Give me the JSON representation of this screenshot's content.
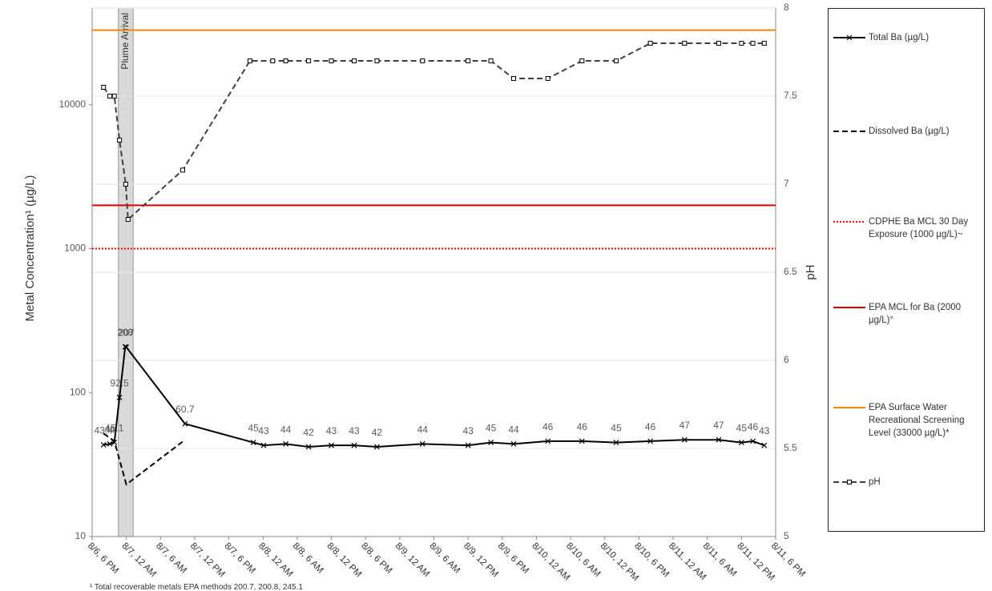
{
  "chart_data": {
    "type": "line",
    "ylabel": "Metal Concentration¹ (µg/L)",
    "y2label": "pH",
    "footnote": "¹ Total recoverable metals EPA methods 200.7, 200.8, 245.1",
    "log_y": true,
    "grid": true,
    "xlim": [
      0,
      120
    ],
    "xticks": [
      {
        "value": 0,
        "label": "8/6, 6 PM"
      },
      {
        "value": 6,
        "label": "8/7, 12 AM"
      },
      {
        "value": 12,
        "label": "8/7, 6 AM"
      },
      {
        "value": 18,
        "label": "8/7, 12 PM"
      },
      {
        "value": 24,
        "label": "8/7, 6 PM"
      },
      {
        "value": 30,
        "label": "8/8, 12 AM"
      },
      {
        "value": 36,
        "label": "8/8, 6 AM"
      },
      {
        "value": 42,
        "label": "8/8, 12 PM"
      },
      {
        "value": 48,
        "label": "8/8, 6 PM"
      },
      {
        "value": 54,
        "label": "8/9, 12 AM"
      },
      {
        "value": 60,
        "label": "8/9, 6 AM"
      },
      {
        "value": 66,
        "label": "8/9, 12 PM"
      },
      {
        "value": 72,
        "label": "8/9, 6 PM"
      },
      {
        "value": 78,
        "label": "8/10, 12 AM"
      },
      {
        "value": 84,
        "label": "8/10, 6 AM"
      },
      {
        "value": 90,
        "label": "8/10, 12 PM"
      },
      {
        "value": 96,
        "label": "8/10, 6 PM"
      },
      {
        "value": 102,
        "label": "8/11, 12 AM"
      },
      {
        "value": 108,
        "label": "8/11, 6 AM"
      },
      {
        "value": 114,
        "label": "8/11, 12 PM"
      },
      {
        "value": 120,
        "label": "8/11, 6 PM"
      }
    ],
    "ylim": [
      10,
      47000
    ],
    "yticks": [
      10,
      100,
      1000,
      10000
    ],
    "y2lim": [
      5,
      8
    ],
    "y2ticks": [
      5,
      5.5,
      6,
      6.5,
      7,
      7.5,
      8
    ],
    "bands": [
      {
        "label": "Plume Arrival",
        "x": [
          4.6,
          7.2
        ],
        "color": "#d9d9d9"
      }
    ],
    "series": [
      {
        "name": "Total Ba (µg/L)",
        "type": "line",
        "color": "#000000",
        "dash": "solid",
        "marker": "x",
        "labels": true,
        "x": [
          2,
          3.1,
          3.9,
          4.8,
          5.8,
          6,
          16.3,
          28.3,
          30.1,
          34,
          38,
          42,
          46,
          50,
          58,
          66,
          70,
          74,
          80,
          86,
          92,
          98,
          104,
          110,
          114,
          116,
          118
        ],
        "values": [
          43.4,
          44,
          45.1,
          92.5,
          208,
          207,
          60.7,
          45,
          43,
          44,
          42,
          43,
          43,
          42,
          44,
          43,
          45,
          44,
          46,
          46,
          45,
          46,
          47,
          47,
          45,
          46,
          43
        ]
      },
      {
        "name": "Dissolved Ba (µg/L)",
        "type": "line",
        "color": "#000000",
        "dash": "dashed",
        "marker": "none",
        "labels": false,
        "x": [
          2,
          3.9,
          6,
          16
        ],
        "values": [
          52,
          46,
          23,
          46
        ]
      },
      {
        "name": "CDPHE Ba MCL 30 Day Exposure (1000 µg/L)~",
        "type": "hline",
        "color": "#ff0000",
        "dash": "dotted",
        "values": [
          1000
        ]
      },
      {
        "name": "EPA MCL for Ba (2000 µg/L)°",
        "type": "hline",
        "color": "#e00000",
        "dash": "solid",
        "values": [
          2000
        ]
      },
      {
        "name": "EPA Surface Water Recreational Screening Level (33000 µg/L)*",
        "type": "hline",
        "color": "#f08a00",
        "dash": "solid",
        "values": [
          33000
        ]
      },
      {
        "name": "pH",
        "type": "line",
        "axis": "y2",
        "color": "#404040",
        "dash": "dashed",
        "marker": "square",
        "labels": false,
        "x": [
          2,
          3.1,
          3.9,
          4.8,
          5.9,
          6.3,
          15.9,
          27.7,
          31.7,
          34,
          38,
          42,
          46,
          50,
          58,
          66,
          70,
          74,
          80,
          86,
          92,
          98,
          104,
          110,
          114,
          116,
          118
        ],
        "values": [
          7.55,
          7.5,
          7.5,
          7.25,
          7,
          6.8,
          7.08,
          7.7,
          7.7,
          7.7,
          7.7,
          7.7,
          7.7,
          7.7,
          7.7,
          7.7,
          7.7,
          7.6,
          7.6,
          7.7,
          7.7,
          7.8,
          7.8,
          7.8,
          7.8,
          7.8,
          7.8
        ]
      }
    ]
  }
}
